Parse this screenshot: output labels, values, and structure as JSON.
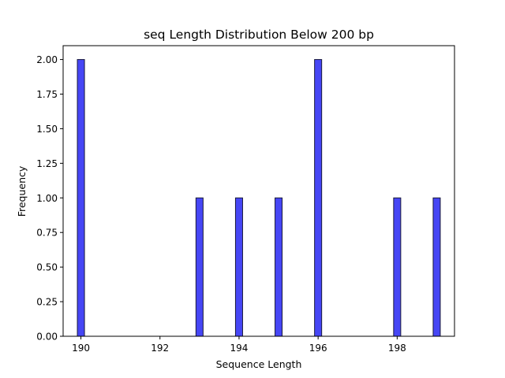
{
  "chart_data": {
    "type": "bar",
    "title": "seq Length Distribution Below 200 bp",
    "xlabel": "Sequence Length",
    "ylabel": "Frequency",
    "x": [
      190,
      193,
      194,
      195,
      196,
      198,
      199
    ],
    "values": [
      2,
      1,
      1,
      1,
      2,
      1,
      1
    ],
    "xlim": [
      189.55,
      199.45
    ],
    "ylim": [
      0,
      2.1
    ],
    "xticks": [
      190,
      192,
      194,
      196,
      198
    ],
    "xtick_labels": [
      "190",
      "192",
      "194",
      "196",
      "198"
    ],
    "yticks": [
      0,
      0.25,
      0.5,
      0.75,
      1.0,
      1.25,
      1.5,
      1.75,
      2.0
    ],
    "ytick_labels": [
      "0.00",
      "0.25",
      "0.50",
      "0.75",
      "1.00",
      "1.25",
      "1.50",
      "1.75",
      "2.00"
    ],
    "bin_width": 0.18,
    "grid": false,
    "colors": {
      "bar_fill": "#4646f5",
      "bar_edge": "#1a1a3a"
    }
  }
}
